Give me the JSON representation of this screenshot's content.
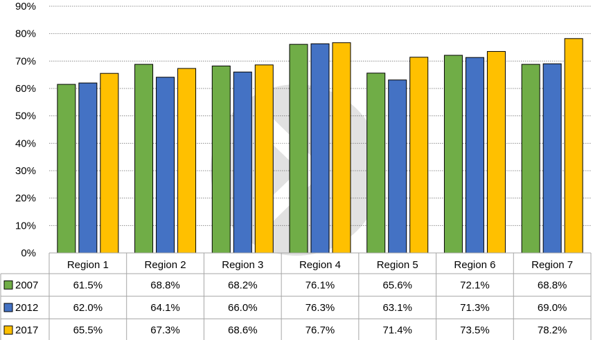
{
  "chart_data": {
    "type": "bar",
    "categories": [
      "Region 1",
      "Region 2",
      "Region 3",
      "Region 4",
      "Region 5",
      "Region 6",
      "Region 7"
    ],
    "series": [
      {
        "name": "2007",
        "color": "#70AD47",
        "values": [
          61.5,
          68.8,
          68.2,
          76.1,
          65.6,
          72.1,
          68.8
        ],
        "labels": [
          "61.5%",
          "68.8%",
          "68.2%",
          "76.1%",
          "65.6%",
          "72.1%",
          "68.8%"
        ]
      },
      {
        "name": "2012",
        "color": "#4472C4",
        "values": [
          62.0,
          64.1,
          66.0,
          76.3,
          63.1,
          71.3,
          69.0
        ],
        "labels": [
          "62.0%",
          "64.1%",
          "66.0%",
          "76.3%",
          "63.1%",
          "71.3%",
          "69.0%"
        ]
      },
      {
        "name": "2017",
        "color": "#FFC000",
        "values": [
          65.5,
          67.3,
          68.6,
          76.7,
          71.4,
          73.5,
          78.2
        ],
        "labels": [
          "65.5%",
          "67.3%",
          "68.6%",
          "76.7%",
          "71.4%",
          "73.5%",
          "78.2%"
        ]
      }
    ],
    "ylim": [
      0,
      90
    ],
    "yticks": [
      "0%",
      "10%",
      "20%",
      "30%",
      "40%",
      "50%",
      "60%",
      "70%",
      "80%",
      "90%"
    ],
    "grid": true,
    "legend": "data-table-left",
    "data_table": true
  }
}
